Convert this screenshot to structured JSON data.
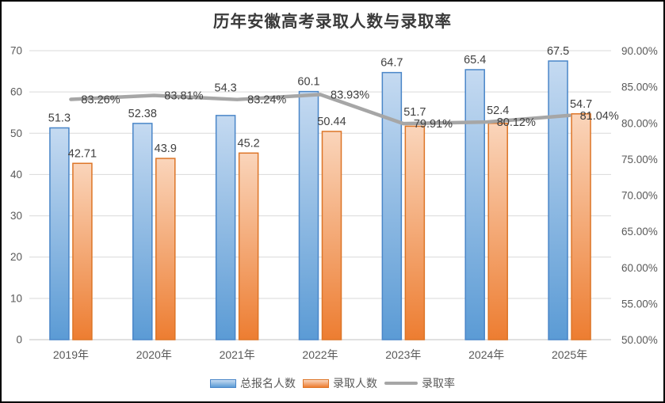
{
  "chart_data": {
    "type": "bar",
    "combo": "bar+line",
    "title": "历年安徽高考录取人数与录取率",
    "categories": [
      "2019年",
      "2020年",
      "2021年",
      "2022年",
      "2023年",
      "2024年",
      "2025年"
    ],
    "series": [
      {
        "name": "总报名人数",
        "type": "bar",
        "axis": "left",
        "values": [
          51.3,
          52.38,
          54.3,
          60.1,
          64.7,
          65.4,
          67.5
        ],
        "labels": [
          "51.3",
          "52.38",
          "54.3",
          "60.1",
          "64.7",
          "65.4",
          "67.5"
        ],
        "fill_top": "#C5DAF1",
        "fill_bottom": "#5B9BD5",
        "border": "#4A86C8"
      },
      {
        "name": "录取人数",
        "type": "bar",
        "axis": "left",
        "values": [
          42.71,
          43.9,
          45.2,
          50.44,
          51.7,
          52.4,
          54.7
        ],
        "labels": [
          "42.71",
          "43.9",
          "45.2",
          "50.44",
          "51.7",
          "52.4",
          "54.7"
        ],
        "fill_top": "#FAD5BB",
        "fill_bottom": "#ED7D31",
        "border": "#DD7527"
      },
      {
        "name": "录取率",
        "type": "line",
        "axis": "right",
        "values": [
          83.26,
          83.81,
          83.24,
          83.93,
          79.91,
          80.12,
          81.04
        ],
        "labels": [
          "83.26%",
          "83.81%",
          "83.24%",
          "83.93%",
          "79.91%",
          "80.12%",
          "81.04%"
        ],
        "color": "#A6A6A6"
      }
    ],
    "left_axis": {
      "min": 0,
      "max": 70,
      "step": 10,
      "tick_labels": [
        "0",
        "10",
        "20",
        "30",
        "40",
        "50",
        "60",
        "70"
      ]
    },
    "right_axis": {
      "min": 50,
      "max": 90,
      "step": 5,
      "tick_labels": [
        "50.00%",
        "55.00%",
        "60.00%",
        "65.00%",
        "70.00%",
        "75.00%",
        "80.00%",
        "85.00%",
        "90.00%"
      ]
    },
    "grid": "horizontal",
    "legend_position": "bottom",
    "legend": [
      {
        "label": "总报名人数",
        "swatch": "bar-blue"
      },
      {
        "label": "录取人数",
        "swatch": "bar-orange"
      },
      {
        "label": "录取率",
        "swatch": "line-gray"
      }
    ],
    "colors": {
      "grid": "#D9D9D9",
      "axis_line": "#C0C0C0",
      "tick_text": "#595959",
      "data_label_text": "#404040",
      "title_text": "#3A3A3A",
      "line": "#A6A6A6",
      "background": "#FFFFFF",
      "frame_border": "#000000"
    }
  }
}
